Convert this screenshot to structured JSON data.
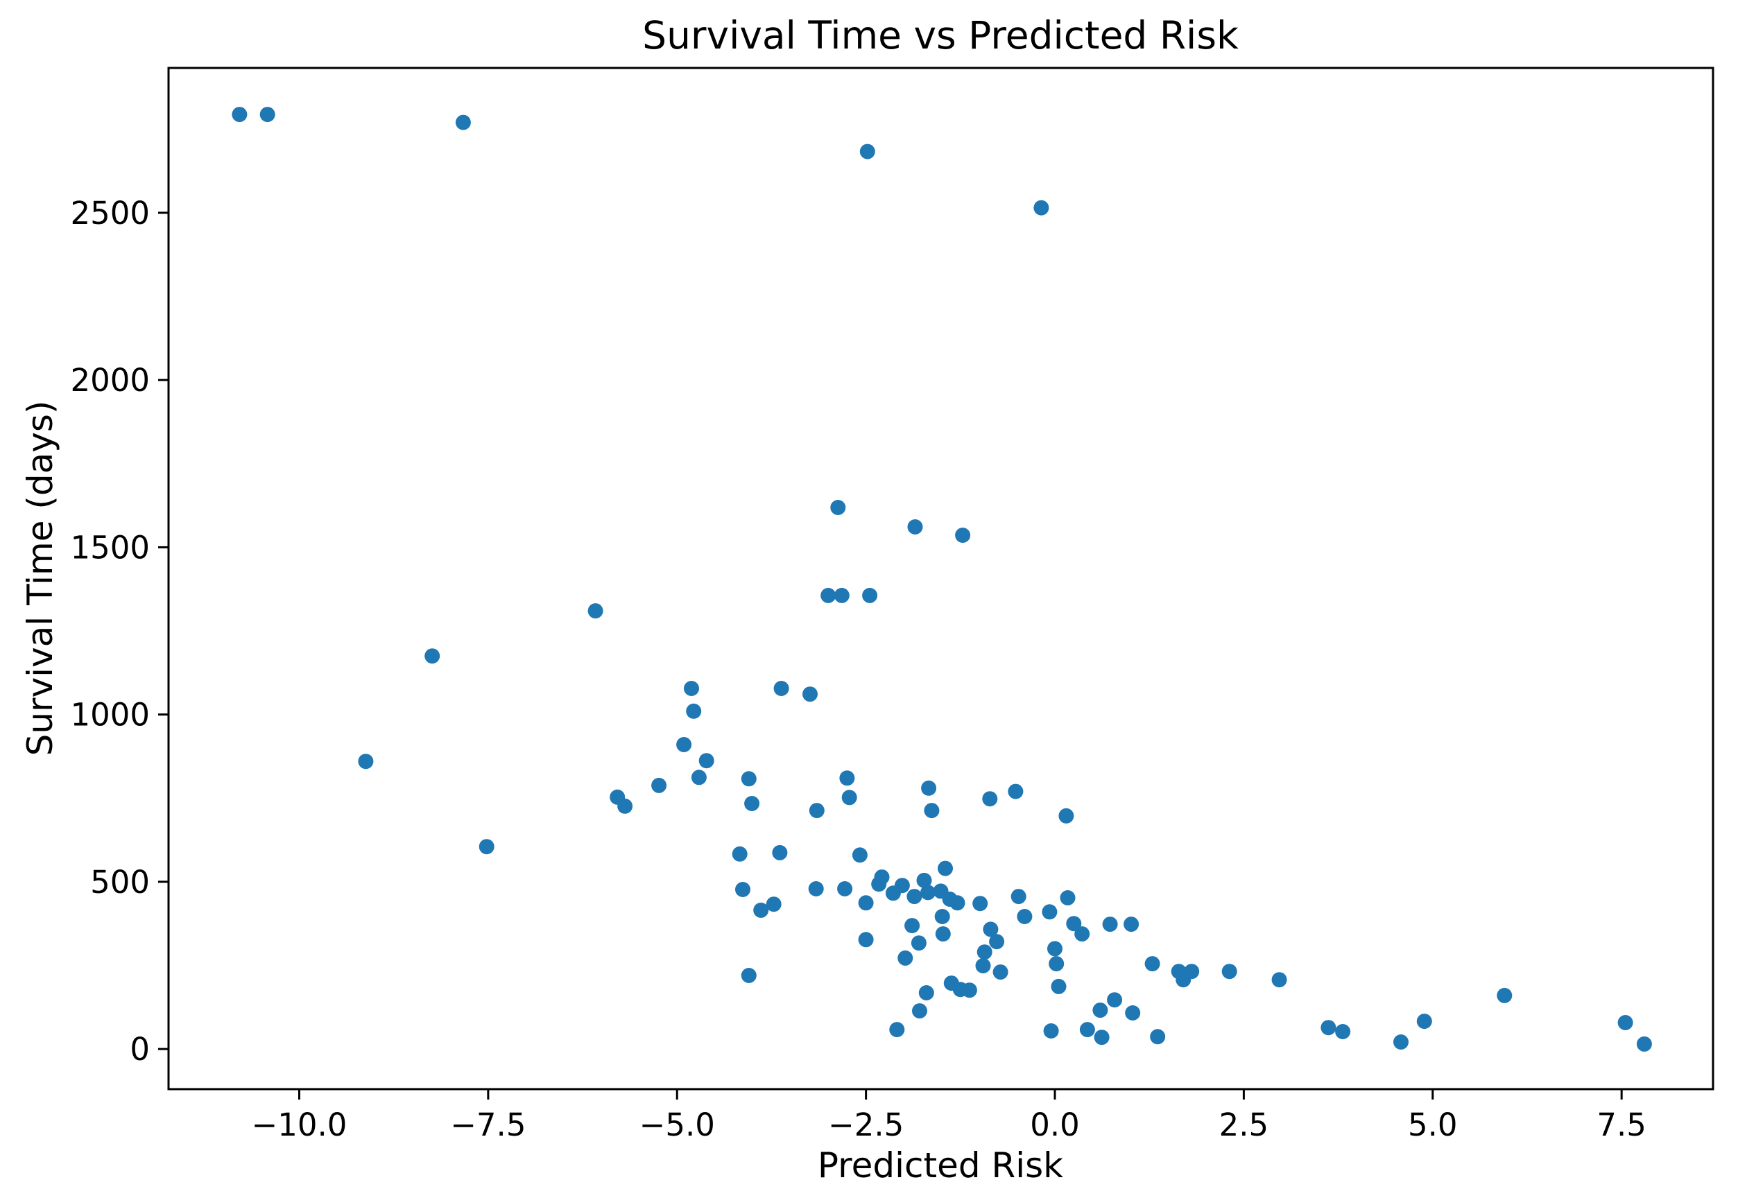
{
  "chart_data": {
    "type": "scatter",
    "title": "Survival Time vs Predicted Risk",
    "xlabel": "Predicted Risk",
    "ylabel": "Survival Time (days)",
    "xlim": [
      -11.73,
      8.71
    ],
    "ylim": [
      -120,
      2933
    ],
    "x_ticks": [
      -10.0,
      -7.5,
      -5.0,
      -2.5,
      0.0,
      2.5,
      5.0,
      7.5
    ],
    "x_tick_labels": [
      "−10.0",
      "−7.5",
      "−5.0",
      "−2.5",
      "0.0",
      "2.5",
      "5.0",
      "7.5"
    ],
    "y_ticks": [
      0,
      500,
      1000,
      1500,
      2000,
      2500
    ],
    "y_tick_labels": [
      "0",
      "500",
      "1000",
      "1500",
      "2000",
      "2500"
    ],
    "grid": false,
    "legend": "none",
    "marker_color": "#1f77b4",
    "background_color": "#ffffff",
    "spine_color": "#000000",
    "marker_radius_px": 11,
    "points": [
      [
        -10.79,
        2794
      ],
      [
        -10.42,
        2794
      ],
      [
        -7.83,
        2770
      ],
      [
        -2.48,
        2683
      ],
      [
        -0.18,
        2515
      ],
      [
        -2.87,
        1619
      ],
      [
        -1.85,
        1561
      ],
      [
        -1.22,
        1536
      ],
      [
        -3.0,
        1356
      ],
      [
        -2.82,
        1356
      ],
      [
        -2.45,
        1356
      ],
      [
        -6.08,
        1310
      ],
      [
        -8.24,
        1175
      ],
      [
        -9.12,
        860
      ],
      [
        -7.52,
        605
      ],
      [
        -4.81,
        1078
      ],
      [
        -4.78,
        1010
      ],
      [
        -4.91,
        910
      ],
      [
        -4.61,
        862
      ],
      [
        -4.71,
        812
      ],
      [
        -5.24,
        788
      ],
      [
        -5.79,
        753
      ],
      [
        -5.69,
        726
      ],
      [
        -3.62,
        1078
      ],
      [
        -3.24,
        1061
      ],
      [
        -4.05,
        808
      ],
      [
        -4.01,
        734
      ],
      [
        -2.75,
        810
      ],
      [
        -2.72,
        752
      ],
      [
        -3.15,
        713
      ],
      [
        -1.67,
        780
      ],
      [
        -1.63,
        713
      ],
      [
        -0.86,
        748
      ],
      [
        -0.52,
        770
      ],
      [
        0.15,
        697
      ],
      [
        -4.17,
        583
      ],
      [
        -3.64,
        587
      ],
      [
        -2.58,
        580
      ],
      [
        -1.45,
        540
      ],
      [
        -4.13,
        477
      ],
      [
        -3.89,
        415
      ],
      [
        -3.72,
        433
      ],
      [
        -3.16,
        479
      ],
      [
        -2.78,
        479
      ],
      [
        -2.5,
        437
      ],
      [
        -2.33,
        493
      ],
      [
        -2.29,
        514
      ],
      [
        -2.14,
        466
      ],
      [
        -2.02,
        489
      ],
      [
        -1.86,
        456
      ],
      [
        -1.73,
        504
      ],
      [
        -1.68,
        468
      ],
      [
        -1.51,
        472
      ],
      [
        -1.39,
        448
      ],
      [
        -1.29,
        437
      ],
      [
        -1.49,
        396
      ],
      [
        -1.89,
        369
      ],
      [
        -1.8,
        317
      ],
      [
        -1.48,
        344
      ],
      [
        -2.5,
        327
      ],
      [
        -1.98,
        272
      ],
      [
        -0.99,
        435
      ],
      [
        -0.85,
        358
      ],
      [
        -0.77,
        321
      ],
      [
        -0.93,
        290
      ],
      [
        -0.95,
        249
      ],
      [
        -0.72,
        230
      ],
      [
        -0.48,
        456
      ],
      [
        -0.4,
        396
      ],
      [
        -0.07,
        410
      ],
      [
        0.17,
        452
      ],
      [
        0.25,
        375
      ],
      [
        0.36,
        344
      ],
      [
        0.0,
        300
      ],
      [
        0.02,
        255
      ],
      [
        0.05,
        187
      ],
      [
        -4.05,
        220
      ],
      [
        -1.37,
        197
      ],
      [
        -1.25,
        178
      ],
      [
        -1.13,
        176
      ],
      [
        -1.7,
        168
      ],
      [
        -1.79,
        114
      ],
      [
        -2.09,
        58
      ],
      [
        -0.05,
        54
      ],
      [
        0.43,
        58
      ],
      [
        0.73,
        373
      ],
      [
        1.01,
        373
      ],
      [
        1.29,
        255
      ],
      [
        1.64,
        232
      ],
      [
        1.7,
        207
      ],
      [
        1.81,
        232
      ],
      [
        2.31,
        232
      ],
      [
        2.97,
        207
      ],
      [
        0.79,
        147
      ],
      [
        0.6,
        116
      ],
      [
        1.03,
        108
      ],
      [
        0.62,
        35
      ],
      [
        1.36,
        37
      ],
      [
        3.62,
        64
      ],
      [
        3.81,
        52
      ],
      [
        4.58,
        21
      ],
      [
        4.89,
        83
      ],
      [
        5.95,
        160
      ],
      [
        7.55,
        79
      ],
      [
        7.8,
        15
      ]
    ]
  }
}
